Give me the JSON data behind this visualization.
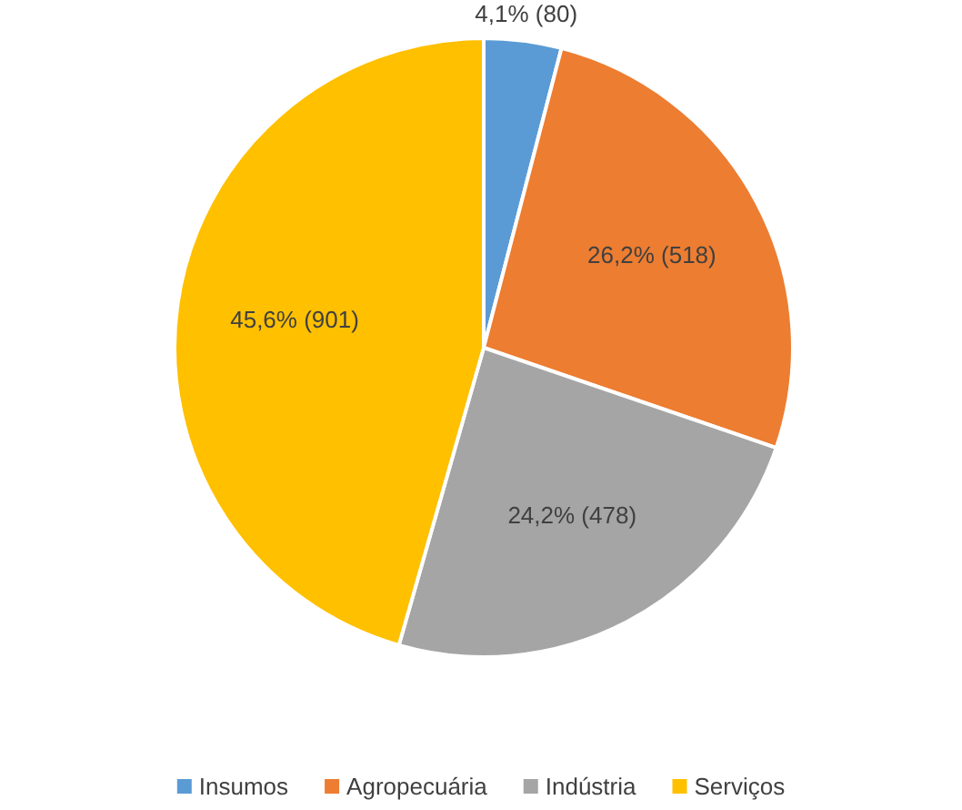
{
  "chart_data": {
    "type": "pie",
    "categories": [
      "Insumos",
      "Agropecuária",
      "Indústria",
      "Serviços"
    ],
    "values": [
      80,
      518,
      478,
      901
    ],
    "colors": [
      "#5b9bd5",
      "#ed7d31",
      "#a5a5a5",
      "#ffc000"
    ],
    "value_labels": [
      "4,1% (80)",
      "26,2% (518)",
      "24,2% (478)",
      "45,6% (901)"
    ],
    "legend": "bottom"
  }
}
